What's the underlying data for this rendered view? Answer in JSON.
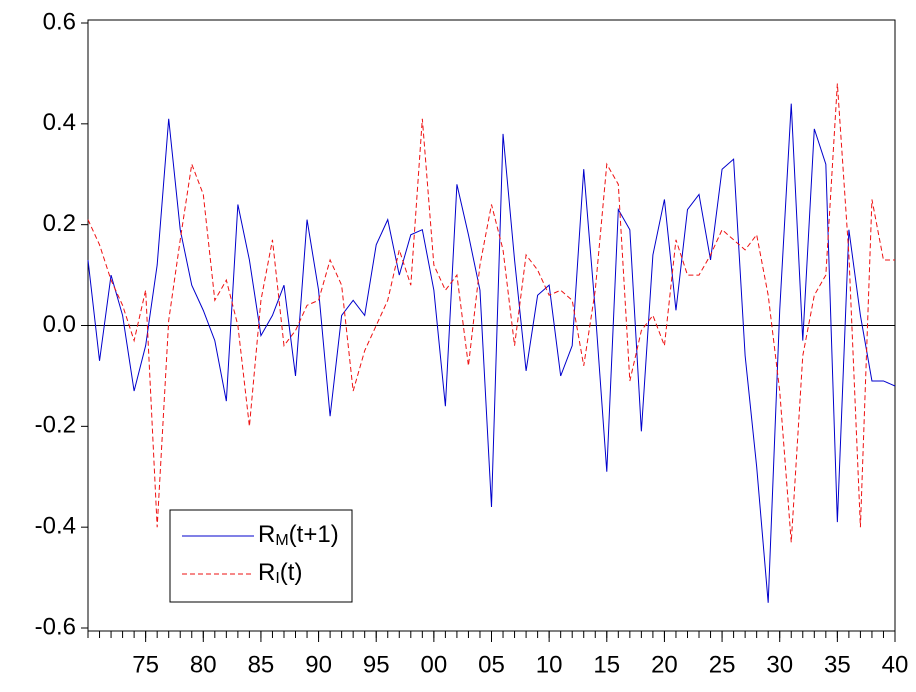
{
  "chart_data": {
    "type": "line",
    "x": [
      1970,
      1971,
      1972,
      1973,
      1974,
      1975,
      1976,
      1977,
      1978,
      1979,
      1980,
      1981,
      1982,
      1983,
      1984,
      1985,
      1986,
      1987,
      1988,
      1989,
      1990,
      1991,
      1992,
      1993,
      1994,
      1995,
      1996,
      1997,
      1998,
      1999,
      2000,
      2001,
      2002,
      2003,
      2004,
      2005,
      2006,
      2007,
      2008,
      2009,
      2010,
      2011,
      2012,
      2013,
      2014,
      2015,
      2016,
      2017,
      2018,
      2019,
      2020,
      2021,
      2022,
      2023,
      2024,
      2025,
      2026,
      2027,
      2028,
      2029,
      2030,
      2031,
      2032,
      2033,
      2034,
      2035,
      2036,
      2037,
      2038,
      2039,
      2040
    ],
    "series": [
      {
        "name": "RM(t+1)",
        "color": "#0000cc",
        "dash": false,
        "values": [
          0.13,
          -0.07,
          0.1,
          0.02,
          -0.13,
          -0.04,
          0.12,
          0.41,
          0.19,
          0.08,
          0.03,
          -0.03,
          -0.15,
          0.24,
          0.13,
          -0.02,
          0.02,
          0.08,
          -0.1,
          0.21,
          0.07,
          -0.18,
          0.02,
          0.05,
          0.02,
          0.16,
          0.21,
          0.1,
          0.18,
          0.19,
          0.07,
          -0.16,
          0.28,
          0.18,
          0.07,
          -0.36,
          0.38,
          0.13,
          -0.09,
          0.06,
          0.08,
          -0.1,
          -0.04,
          0.31,
          0.03,
          -0.29,
          0.23,
          0.19,
          -0.21,
          0.14,
          0.25,
          0.03,
          0.23,
          0.26,
          0.13,
          0.31,
          0.33,
          -0.06,
          -0.28,
          -0.55,
          0.03,
          0.44,
          -0.03,
          0.39,
          0.32,
          -0.39,
          0.19,
          0.02,
          -0.11,
          -0.11,
          -0.12
        ]
      },
      {
        "name": "RI(t)",
        "color": "#ee1111",
        "dash": true,
        "values": [
          0.21,
          0.16,
          0.09,
          0.04,
          -0.03,
          0.07,
          -0.4,
          0.01,
          0.17,
          0.32,
          0.26,
          0.05,
          0.09,
          0.0,
          -0.2,
          0.05,
          0.17,
          -0.04,
          -0.01,
          0.04,
          0.05,
          0.13,
          0.08,
          -0.13,
          -0.05,
          0.0,
          0.05,
          0.15,
          0.08,
          0.41,
          0.12,
          0.07,
          0.1,
          -0.08,
          0.12,
          0.24,
          0.15,
          -0.04,
          0.14,
          0.11,
          0.06,
          0.07,
          0.05,
          -0.08,
          0.07,
          0.32,
          0.28,
          -0.11,
          -0.01,
          0.02,
          -0.04,
          0.17,
          0.1,
          0.1,
          0.14,
          0.19,
          0.17,
          0.15,
          0.18,
          0.06,
          -0.13,
          -0.43,
          -0.06,
          0.06,
          0.1,
          0.48,
          0.14,
          -0.4,
          0.25,
          0.13,
          0.13
        ]
      }
    ],
    "xlim": [
      1970,
      2040
    ],
    "xticks": [
      {
        "value": 1975,
        "label": "75"
      },
      {
        "value": 1980,
        "label": "80"
      },
      {
        "value": 1985,
        "label": "85"
      },
      {
        "value": 1990,
        "label": "90"
      },
      {
        "value": 1995,
        "label": "95"
      },
      {
        "value": 2000,
        "label": "00"
      },
      {
        "value": 2005,
        "label": "05"
      },
      {
        "value": 2010,
        "label": "10"
      },
      {
        "value": 2015,
        "label": "15"
      },
      {
        "value": 2020,
        "label": "20"
      },
      {
        "value": 2025,
        "label": "25"
      },
      {
        "value": 2030,
        "label": "30"
      },
      {
        "value": 2035,
        "label": "35"
      },
      {
        "value": 2040,
        "label": "40"
      }
    ],
    "ylim": [
      -0.6,
      0.6
    ],
    "yticks": [
      -0.6,
      -0.4,
      -0.2,
      {
        "value": 0,
        "label": "0.0"
      },
      0.2,
      0.4,
      0.6
    ],
    "zero_line": true,
    "legend": "lower left"
  }
}
